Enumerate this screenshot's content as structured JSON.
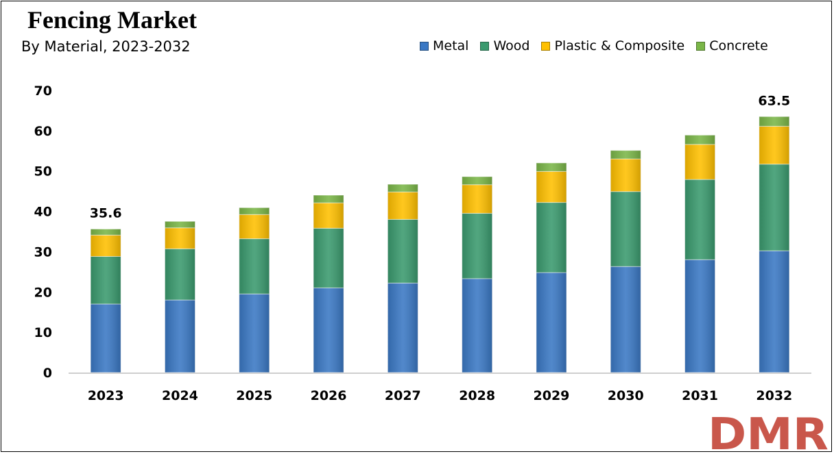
{
  "title": "Fencing Market",
  "subtitle": "By Material, 2023-2032",
  "logo_text": "DMR",
  "chart_data": {
    "type": "bar",
    "stacked": true,
    "categories": [
      "2023",
      "2024",
      "2025",
      "2026",
      "2027",
      "2028",
      "2029",
      "2030",
      "2031",
      "2032"
    ],
    "series": [
      {
        "name": "Metal",
        "color": "#3A78C4",
        "values": [
          17.0,
          18.0,
          19.5,
          21.0,
          22.2,
          23.3,
          24.8,
          26.3,
          28.0,
          30.2
        ]
      },
      {
        "name": "Wood",
        "color": "#3A9A6E",
        "values": [
          11.8,
          12.7,
          13.7,
          14.8,
          15.8,
          16.2,
          17.4,
          18.6,
          19.9,
          21.5
        ]
      },
      {
        "name": "Plastic & Composite",
        "color": "#FFC000",
        "values": [
          5.3,
          5.2,
          6.0,
          6.3,
          6.8,
          7.1,
          7.7,
          8.1,
          8.7,
          9.4
        ]
      },
      {
        "name": "Concrete",
        "color": "#7AB648",
        "values": [
          1.5,
          1.6,
          1.7,
          1.9,
          1.9,
          2.0,
          2.1,
          2.1,
          2.3,
          2.4
        ]
      }
    ],
    "totals_labels": [
      {
        "category": "2023",
        "text": "35.6"
      },
      {
        "category": "2032",
        "text": "63.5"
      }
    ],
    "yticks": [
      "0",
      "10",
      "20",
      "30",
      "40",
      "50",
      "60",
      "70"
    ],
    "ylim": [
      0,
      70
    ],
    "grid": false,
    "legend_position": "top-right"
  }
}
